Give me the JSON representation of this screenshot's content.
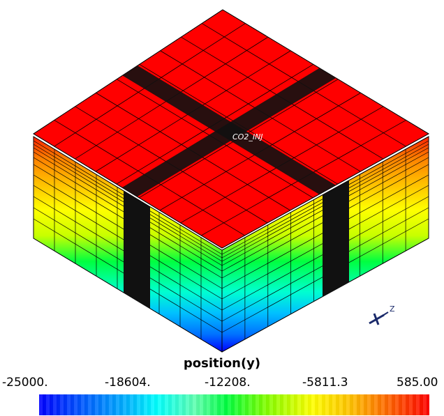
{
  "well": {
    "label": "CO2_INJ"
  },
  "axis": {
    "label": "Z"
  },
  "colorbar": {
    "title": "position(y)",
    "ticks": [
      "-25000.",
      "-18604.",
      "-12208.",
      "-5811.3",
      "585.00"
    ],
    "range": [
      -25000,
      585
    ],
    "colors": [
      "#0000ff",
      "#00ffff",
      "#00ff40",
      "#ffff00",
      "#ff0000"
    ]
  },
  "model": {
    "top_color": "#ff0000",
    "edge_color": "#000000",
    "well_band_color": "#111111",
    "layer_colors": [
      "#ff0000",
      "#ff8000",
      "#ffc000",
      "#ffff00",
      "#c8ff00",
      "#00ff40",
      "#00ffd0",
      "#00c0ff",
      "#0060ff",
      "#0000ff"
    ]
  }
}
